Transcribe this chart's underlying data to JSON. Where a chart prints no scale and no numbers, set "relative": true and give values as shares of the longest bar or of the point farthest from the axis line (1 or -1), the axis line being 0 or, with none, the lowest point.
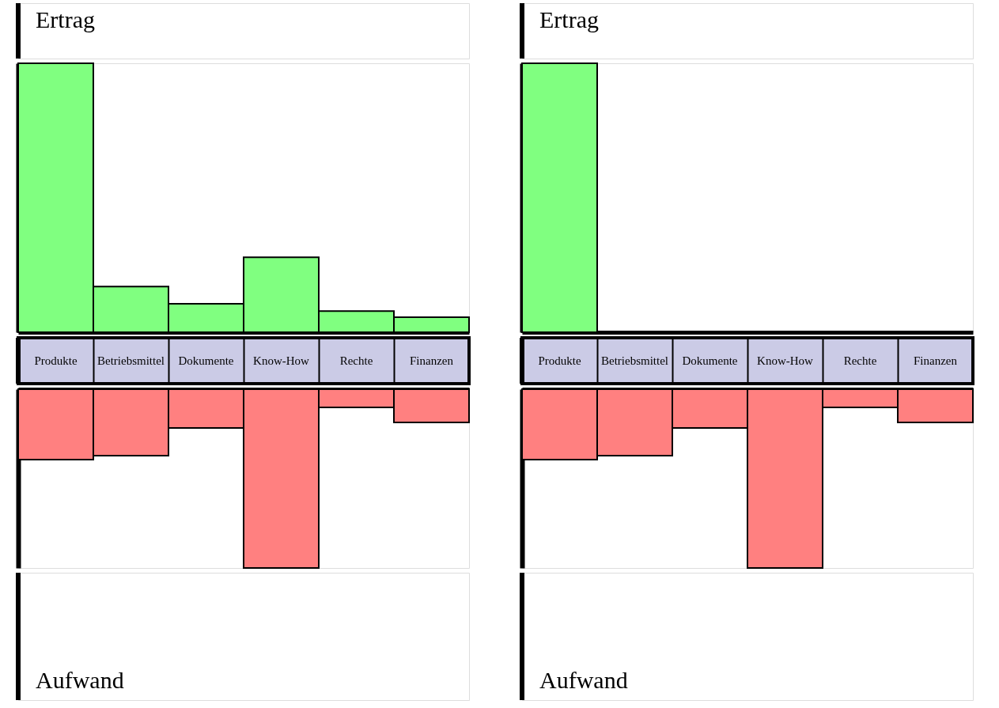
{
  "chart_data": [
    {
      "type": "bar",
      "relative": true,
      "categories": [
        "Produkte",
        "Betriebsmittel",
        "Dokumente",
        "Know-How",
        "Rechte",
        "Finanzen"
      ],
      "annotations": [
        "Ertrag"
      ],
      "series": [
        {
          "color": "#80ff80",
          "values": [
            1,
            0.17,
            0.106,
            0.279,
            0.079,
            0.056
          ]
        }
      ]
    },
    {
      "type": "bar",
      "relative": true,
      "categories": [
        "Produkte",
        "Betriebsmittel",
        "Dokumente",
        "Know-How",
        "Rechte",
        "Finanzen"
      ],
      "annotations": [
        "Ertrag"
      ],
      "series": [
        {
          "color": "#80ff80",
          "values": [
            1,
            0,
            0,
            0,
            0,
            0
          ]
        }
      ]
    },
    {
      "type": "bar",
      "relative": true,
      "categories": [
        null,
        null,
        null,
        null,
        null,
        null
      ],
      "annotations": [
        "Aufwand"
      ],
      "series": [
        {
          "color": "#ff8080",
          "values": [
            -0.394,
            -0.372,
            -0.217,
            -1,
            -0.102,
            -0.186
          ]
        }
      ]
    },
    {
      "type": "bar",
      "relative": true,
      "categories": [
        null,
        null,
        null,
        null,
        null,
        null
      ],
      "annotations": [
        "Aufwand"
      ],
      "series": [
        {
          "color": "#ff8080",
          "values": [
            -0.394,
            -0.372,
            -0.217,
            -1,
            -0.102,
            -0.186
          ]
        }
      ]
    }
  ]
}
